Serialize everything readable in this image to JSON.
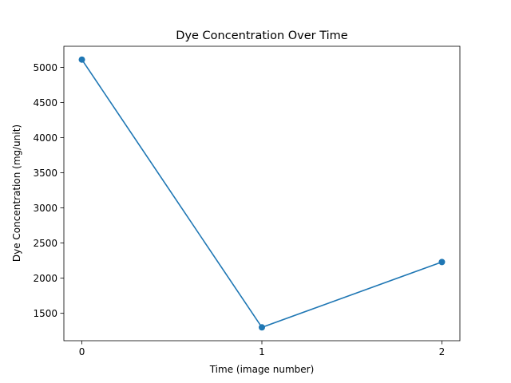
{
  "chart_data": {
    "type": "line",
    "title": "Dye Concentration Over Time",
    "xlabel": "Time (image number)",
    "ylabel": "Dye Concentration (mg/unit)",
    "x": [
      0,
      1,
      2
    ],
    "xticks": [
      "0",
      "1",
      "2"
    ],
    "yticks": [
      1500,
      2000,
      2500,
      3000,
      3500,
      4000,
      4500,
      5000
    ],
    "xlim": [
      -0.1,
      2.1
    ],
    "ylim": [
      1110,
      5300
    ],
    "grid": false,
    "legend": "none",
    "series": [
      {
        "values": [
          5110,
          1300,
          2230
        ],
        "color": "#1f77b4",
        "marker": "circle"
      }
    ]
  }
}
